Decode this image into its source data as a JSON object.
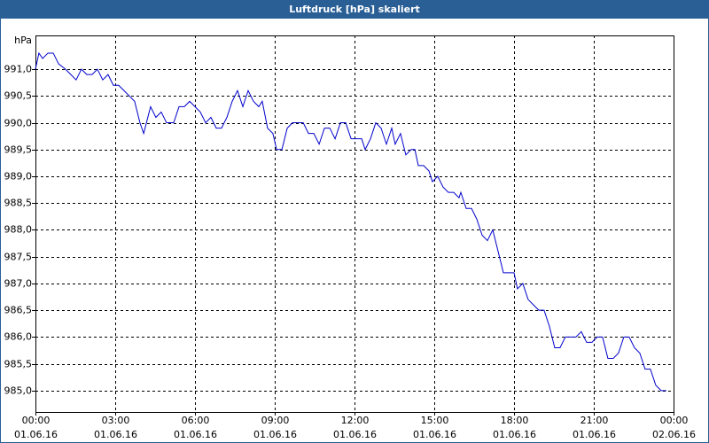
{
  "chart_data": {
    "type": "line",
    "title": "Luftdruck [hPa] skaliert",
    "y_label": "hPa",
    "color": "#0000cc",
    "grid": true,
    "xlim": [
      0,
      24
    ],
    "ylim": [
      984.6,
      991.63
    ],
    "xticks": [
      {
        "value": 0,
        "label": "00:00",
        "date": "01.06.16"
      },
      {
        "value": 3,
        "label": "03:00",
        "date": "01.06.16"
      },
      {
        "value": 6,
        "label": "06:00",
        "date": "01.06.16"
      },
      {
        "value": 9,
        "label": "09:00",
        "date": "01.06.16"
      },
      {
        "value": 12,
        "label": "12:00",
        "date": "01.06.16"
      },
      {
        "value": 15,
        "label": "15:00",
        "date": "01.06.16"
      },
      {
        "value": 18,
        "label": "18:00",
        "date": "01.06.16"
      },
      {
        "value": 21,
        "label": "21:00",
        "date": "01.06.16"
      },
      {
        "value": 24,
        "label": "00:00",
        "date": "02.06.16"
      }
    ],
    "yticks": [
      {
        "value": 985,
        "label": "985,0"
      },
      {
        "value": 985.5,
        "label": "985,5"
      },
      {
        "value": 986,
        "label": "986,0"
      },
      {
        "value": 986.5,
        "label": "986,5"
      },
      {
        "value": 987,
        "label": "987,0"
      },
      {
        "value": 987.5,
        "label": "987,5"
      },
      {
        "value": 988,
        "label": "988,0"
      },
      {
        "value": 988.5,
        "label": "988,5"
      },
      {
        "value": 989,
        "label": "989,0"
      },
      {
        "value": 989.5,
        "label": "989,5"
      },
      {
        "value": 990,
        "label": "990,0"
      },
      {
        "value": 990.5,
        "label": "990,5"
      },
      {
        "value": 991,
        "label": "991,0"
      }
    ],
    "x": [
      0,
      0.13,
      0.27,
      0.47,
      0.67,
      0.87,
      1.13,
      1.33,
      1.53,
      1.73,
      1.93,
      2.13,
      2.33,
      2.53,
      2.73,
      2.93,
      3.13,
      3.33,
      3.53,
      3.73,
      3.93,
      4.07,
      4.33,
      4.53,
      4.73,
      4.93,
      5.2,
      5.4,
      5.6,
      5.8,
      6,
      6.2,
      6.4,
      6.6,
      6.8,
      7,
      7.2,
      7.4,
      7.6,
      7.8,
      8,
      8.2,
      8.4,
      8.53,
      8.73,
      8.93,
      9.07,
      9.27,
      9.47,
      9.67,
      9.87,
      10.07,
      10.27,
      10.47,
      10.67,
      10.87,
      11.07,
      11.27,
      11.47,
      11.67,
      11.87,
      12.07,
      12.27,
      12.4,
      12.6,
      12.8,
      13,
      13.2,
      13.4,
      13.53,
      13.73,
      13.93,
      14.13,
      14.27,
      14.4,
      14.6,
      14.8,
      14.93,
      15.13,
      15.33,
      15.53,
      15.73,
      15.93,
      16,
      16.2,
      16.4,
      16.6,
      16.8,
      17,
      17.2,
      17.4,
      17.6,
      17.8,
      18,
      18.13,
      18.33,
      18.53,
      18.73,
      18.93,
      19.13,
      19.33,
      19.53,
      19.73,
      19.93,
      20.13,
      20.33,
      20.53,
      20.73,
      20.93,
      21.13,
      21.33,
      21.53,
      21.73,
      21.93,
      22.13,
      22.33,
      22.53,
      22.73,
      22.93,
      23.13,
      23.33,
      23.53,
      23.73
    ],
    "values": [
      991.0,
      991.3,
      991.2,
      991.3,
      991.3,
      991.1,
      991.0,
      990.9,
      990.8,
      991.0,
      990.9,
      990.9,
      991.0,
      990.8,
      990.9,
      990.7,
      990.7,
      990.6,
      990.5,
      990.4,
      990.0,
      989.8,
      990.3,
      990.1,
      990.2,
      990.0,
      990.0,
      990.3,
      990.3,
      990.4,
      990.3,
      990.2,
      990.0,
      990.1,
      989.9,
      989.9,
      990.1,
      990.4,
      990.6,
      990.3,
      990.6,
      990.4,
      990.3,
      990.4,
      989.9,
      989.8,
      989.5,
      989.5,
      989.9,
      990.0,
      990.0,
      990.0,
      989.8,
      989.8,
      989.6,
      989.9,
      989.9,
      989.7,
      990.0,
      990.0,
      989.7,
      989.7,
      989.7,
      989.5,
      989.7,
      990.0,
      989.9,
      989.6,
      989.9,
      989.6,
      989.8,
      989.4,
      989.5,
      989.5,
      989.2,
      989.2,
      989.1,
      988.9,
      989.0,
      988.8,
      988.7,
      988.7,
      988.6,
      988.7,
      988.4,
      988.4,
      988.2,
      987.9,
      987.8,
      988.0,
      987.6,
      987.2,
      987.2,
      987.2,
      986.9,
      987.0,
      986.7,
      986.6,
      986.5,
      986.5,
      986.2,
      985.8,
      985.8,
      986.0,
      986.0,
      986.0,
      986.1,
      985.9,
      985.9,
      986.0,
      986.0,
      985.6,
      985.6,
      985.7,
      986.0,
      986.0,
      985.8,
      985.7,
      985.4,
      985.4,
      985.1,
      985.0,
      985.0
    ]
  }
}
